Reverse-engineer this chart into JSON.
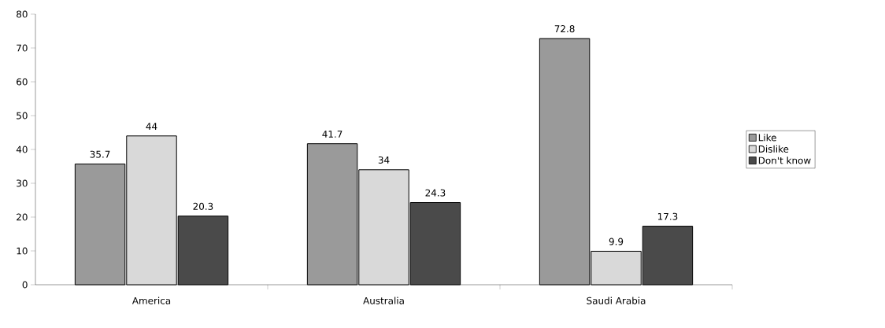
{
  "chart_data": {
    "type": "bar",
    "categories": [
      "America",
      "Australia",
      "Saudi Arabia"
    ],
    "series": [
      {
        "name": "Like",
        "color": "#9a9a9a",
        "values": [
          35.7,
          41.7,
          72.8
        ]
      },
      {
        "name": "Dislike",
        "color": "#d9d9d9",
        "values": [
          44,
          34,
          9.9
        ]
      },
      {
        "name": "Don't know",
        "color": "#4a4a4a",
        "values": [
          20.3,
          24.3,
          17.3
        ]
      }
    ],
    "ylim": [
      0,
      80
    ],
    "yticks": [
      0,
      10,
      20,
      30,
      40,
      50,
      60,
      70,
      80
    ],
    "data_labels": true,
    "legend": "right",
    "grid": false
  }
}
